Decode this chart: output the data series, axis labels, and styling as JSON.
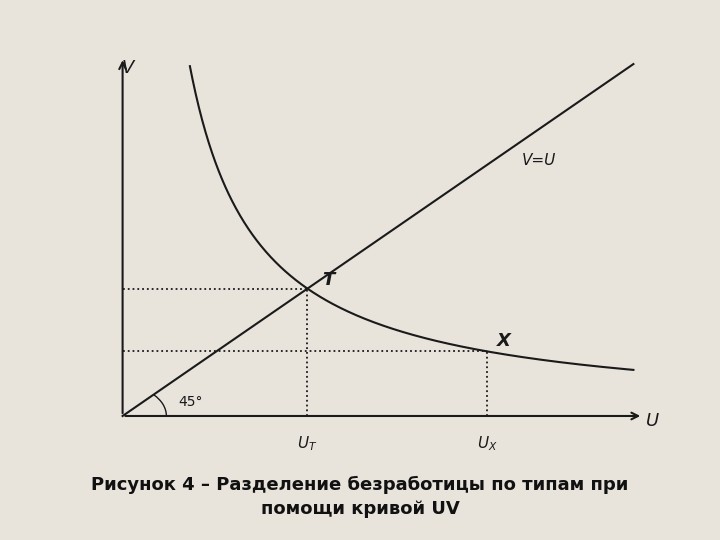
{
  "title": "Рисунок 4 – Разделение безработицы по типам при\nпомощи кривой UV",
  "xlabel": "U",
  "ylabel": "V",
  "bg_color": "#e8e4dc",
  "line_color": "#1a1a1a",
  "label_VU": "V=U",
  "label_T": "T",
  "label_X": "X",
  "label_45": "45°",
  "xmin": 0,
  "xmax": 10,
  "ymin": 0,
  "ymax": 10,
  "T_x": 3.8,
  "X_x": 7.5,
  "k_uv": 14.44
}
